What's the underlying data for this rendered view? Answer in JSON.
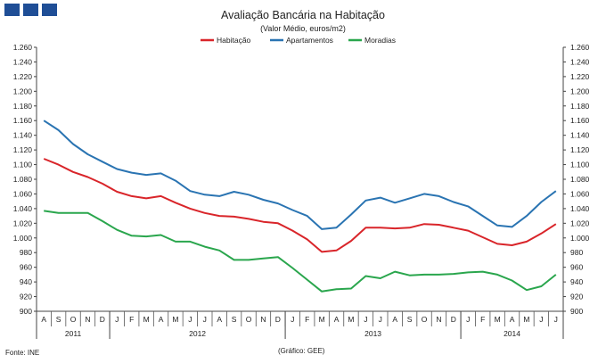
{
  "brand": {
    "color": "#1f4e96"
  },
  "footer": {
    "source": "Fonte: INE",
    "credit": "(Gráfico: GEE)"
  },
  "chart_data": {
    "type": "line",
    "title": "Avaliação Bancária na Habitação",
    "subtitle": "(Valor Médio, euros/m2)",
    "ylim": [
      900,
      1260
    ],
    "ystep": 20,
    "y_ticks": [
      "900",
      "920",
      "940",
      "960",
      "980",
      "1.000",
      "1.020",
      "1.040",
      "1.060",
      "1.080",
      "1.100",
      "1.120",
      "1.140",
      "1.160",
      "1.180",
      "1.200",
      "1.220",
      "1.240",
      "1.260"
    ],
    "grid": false,
    "legend_position": "top-center",
    "categories": [
      "A",
      "S",
      "O",
      "N",
      "D",
      "J",
      "F",
      "M",
      "A",
      "M",
      "J",
      "J",
      "A",
      "S",
      "O",
      "N",
      "D",
      "J",
      "F",
      "M",
      "A",
      "M",
      "J",
      "J",
      "A",
      "S",
      "O",
      "N",
      "D",
      "J",
      "F",
      "M",
      "A",
      "M",
      "J",
      "J"
    ],
    "years": [
      {
        "label": "2011",
        "start": 0,
        "end": 4
      },
      {
        "label": "2012",
        "start": 5,
        "end": 16
      },
      {
        "label": "2013",
        "start": 17,
        "end": 28
      },
      {
        "label": "2014",
        "start": 29,
        "end": 35
      }
    ],
    "series": [
      {
        "name": "Habitação",
        "color": "#d9252a",
        "values": [
          1108,
          1100,
          1090,
          1083,
          1074,
          1063,
          1057,
          1054,
          1057,
          1048,
          1040,
          1034,
          1030,
          1029,
          1026,
          1022,
          1020,
          1010,
          998,
          981,
          983,
          996,
          1014,
          1014,
          1013,
          1014,
          1019,
          1018,
          1014,
          1010,
          1001,
          992,
          990,
          995,
          1006,
          1019
        ]
      },
      {
        "name": "Apartamentos",
        "color": "#2a74b2",
        "values": [
          1160,
          1147,
          1128,
          1114,
          1104,
          1094,
          1089,
          1086,
          1088,
          1078,
          1064,
          1059,
          1057,
          1063,
          1059,
          1052,
          1047,
          1038,
          1030,
          1012,
          1014,
          1032,
          1051,
          1055,
          1048,
          1054,
          1060,
          1057,
          1049,
          1043,
          1030,
          1017,
          1015,
          1030,
          1049,
          1064
        ]
      },
      {
        "name": "Moradias",
        "color": "#2aa64d",
        "values": [
          1037,
          1034,
          1034,
          1034,
          1023,
          1011,
          1003,
          1002,
          1004,
          995,
          995,
          988,
          983,
          970,
          970,
          972,
          974,
          959,
          943,
          927,
          930,
          931,
          948,
          945,
          954,
          949,
          950,
          950,
          951,
          953,
          954,
          950,
          942,
          929,
          934,
          950
        ]
      }
    ]
  }
}
